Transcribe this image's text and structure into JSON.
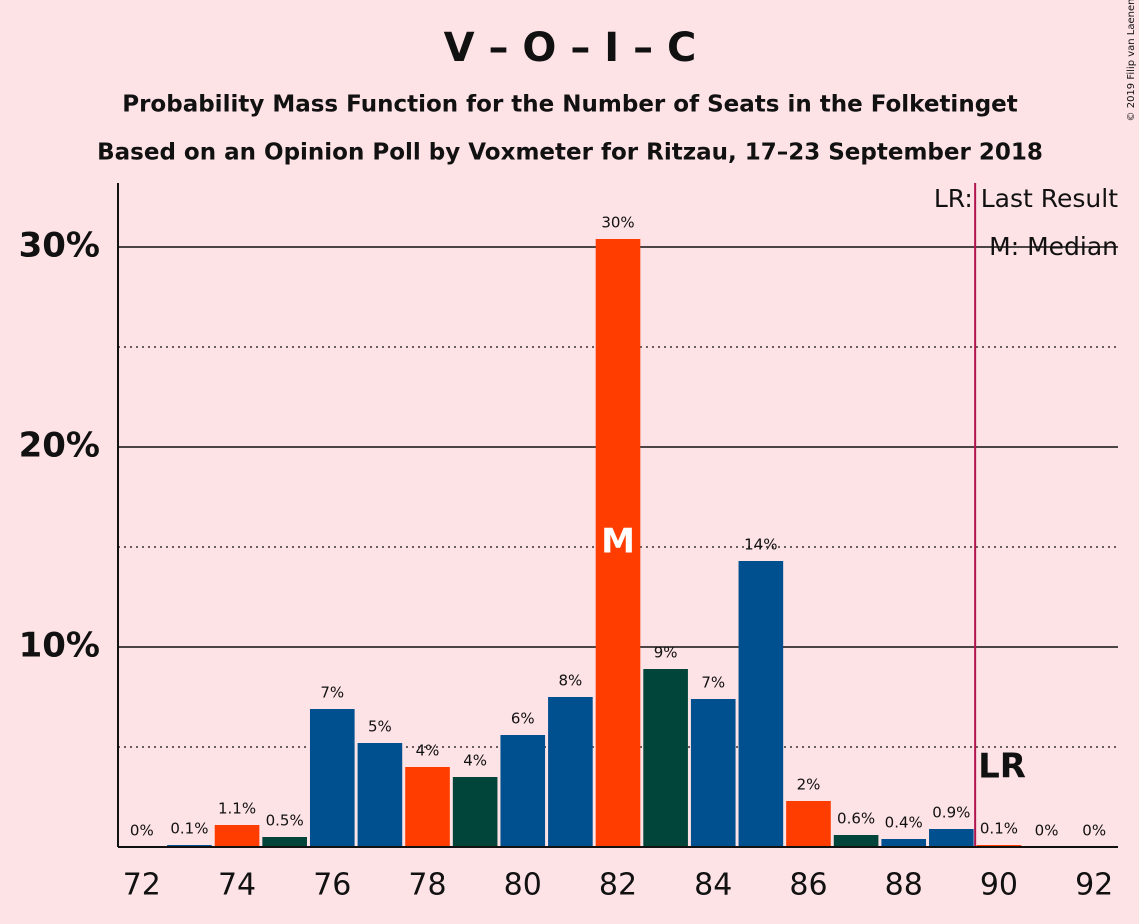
{
  "chart_data": {
    "type": "bar",
    "title": "V – O – I – C",
    "subtitle": "Probability Mass Function for the Number of Seats in the Folketinget",
    "subtitle2": "Based on an Opinion Poll by Voxmeter for Ritzau, 17–23 September 2018",
    "copyright": "© 2019 Filip van Laenen",
    "x": [
      72,
      73,
      74,
      75,
      76,
      77,
      78,
      79,
      80,
      81,
      82,
      83,
      84,
      85,
      86,
      87,
      88,
      89,
      90,
      91,
      92
    ],
    "values": [
      0,
      0.1,
      1.1,
      0.5,
      6.9,
      5.2,
      4.0,
      3.5,
      5.6,
      7.5,
      30.4,
      8.9,
      7.4,
      14.3,
      2.3,
      0.6,
      0.4,
      0.9,
      0.1,
      0,
      0
    ],
    "value_labels": [
      "0%",
      "0.1%",
      "1.1%",
      "0.5%",
      "7%",
      "5%",
      "4%",
      "4%",
      "6%",
      "8%",
      "30%",
      "9%",
      "7%",
      "14%",
      "2%",
      "0.6%",
      "0.4%",
      "0.9%",
      "0.1%",
      "0%",
      "0%"
    ],
    "colors": [
      "#00508f",
      "#00508f",
      "#ff3d00",
      "#00443a",
      "#00508f",
      "#00508f",
      "#ff3d00",
      "#00443a",
      "#00508f",
      "#00508f",
      "#ff3d00",
      "#00443a",
      "#00508f",
      "#00508f",
      "#ff3d00",
      "#00443a",
      "#00508f",
      "#00508f",
      "#ff3d00",
      "#00443a",
      "#00508f"
    ],
    "xlim": [
      71.5,
      92.5
    ],
    "xticks": [
      72,
      74,
      76,
      78,
      80,
      82,
      84,
      86,
      88,
      90,
      92
    ],
    "ylim": [
      0,
      33.2
    ],
    "yticks": [
      {
        "value": 10,
        "label": "10%"
      },
      {
        "value": 20,
        "label": "20%"
      },
      {
        "value": 30,
        "label": "30%"
      }
    ],
    "minor_yticks": [
      5,
      15,
      25
    ],
    "grid": true,
    "median": 82,
    "median_label": "M",
    "last_result": 90,
    "last_result_label": "LR",
    "legend": [
      "LR: Last Result",
      "M: Median"
    ]
  }
}
